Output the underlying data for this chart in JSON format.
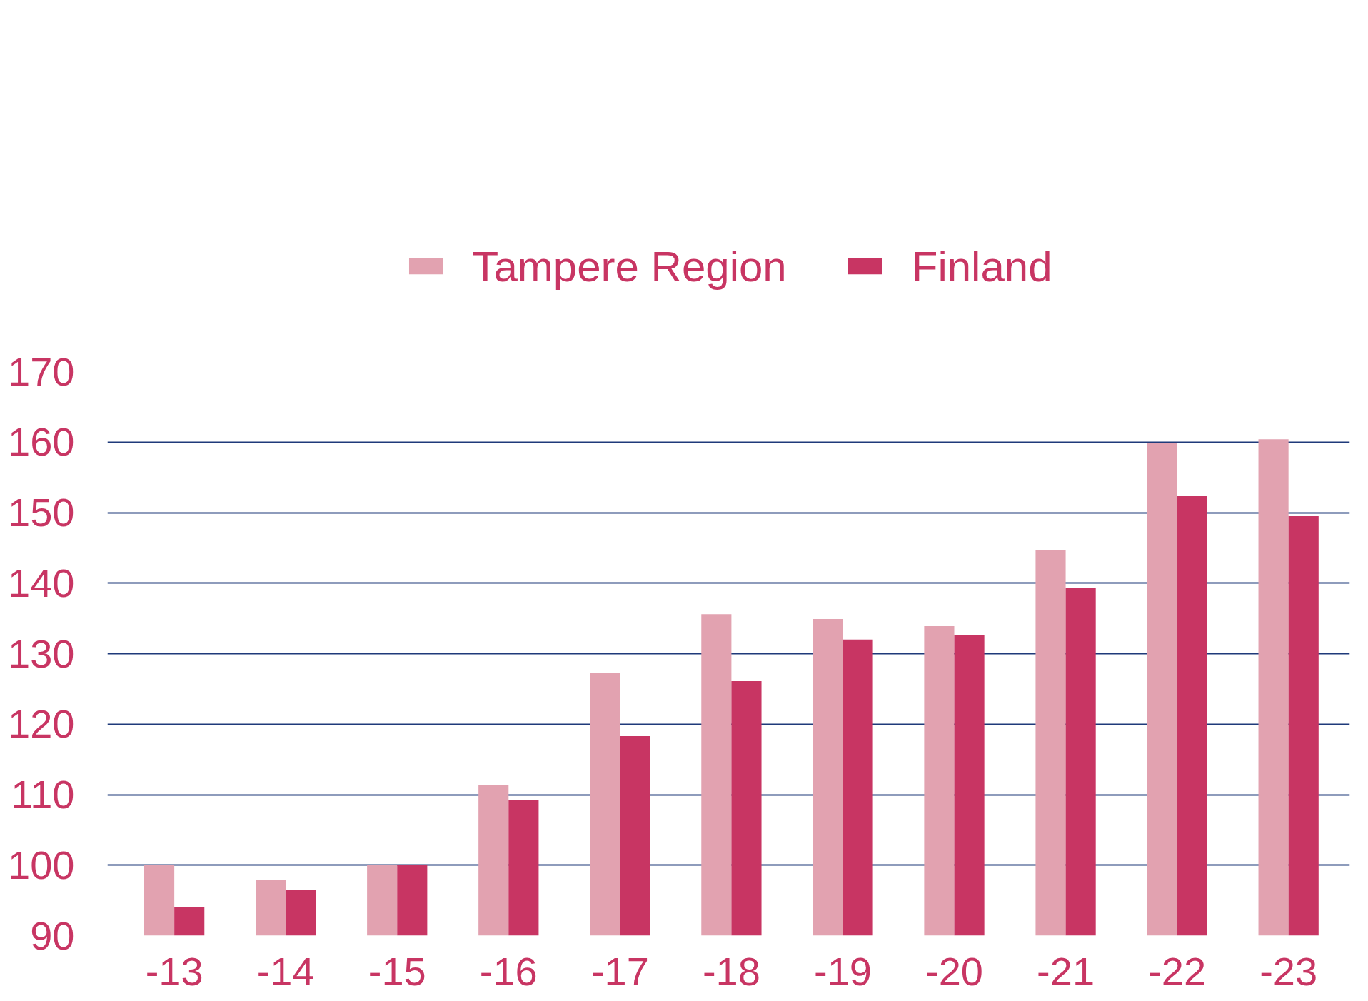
{
  "chart_data": {
    "type": "bar",
    "categories": [
      "-13",
      "-14",
      "-15",
      "-16",
      "-17",
      "-18",
      "-19",
      "-20",
      "-21",
      "-22",
      "-23"
    ],
    "series": [
      {
        "name": "Tampere Region",
        "color": "#e2a2b0",
        "values": [
          100,
          97.9,
          100,
          111.4,
          127.3,
          135.6,
          134.9,
          133.9,
          144.7,
          159.9,
          160.4
        ]
      },
      {
        "name": "Finland",
        "color": "#c83563",
        "values": [
          94,
          96.5,
          100,
          109.3,
          118.3,
          126.1,
          132,
          132.6,
          139.3,
          152.4,
          149.5
        ]
      }
    ],
    "ylim": [
      90,
      170
    ],
    "yticks": [
      90,
      100,
      110,
      120,
      130,
      140,
      150,
      160,
      170
    ],
    "grid": "y",
    "legend": "top"
  }
}
